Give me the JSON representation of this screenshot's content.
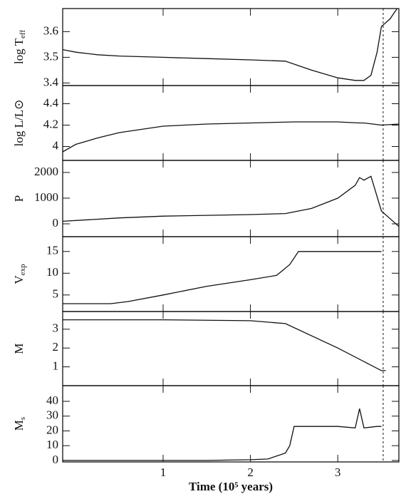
{
  "chart_data": [
    {
      "type": "line",
      "ylabel": "log T",
      "ylabel_sub": "eff",
      "xlim": [
        -0.15,
        3.7
      ],
      "ylim": [
        3.39,
        3.69
      ],
      "yticks": [
        3.4,
        3.5,
        3.6
      ],
      "dashed_line_x": 3.52,
      "x": [
        -0.15,
        0,
        0.25,
        0.5,
        1,
        1.5,
        2,
        2.4,
        2.7,
        3,
        3.2,
        3.3,
        3.38,
        3.45,
        3.5,
        3.6,
        3.68
      ],
      "values": [
        3.53,
        3.52,
        3.51,
        3.505,
        3.5,
        3.495,
        3.49,
        3.485,
        3.45,
        3.42,
        3.41,
        3.41,
        3.43,
        3.52,
        3.62,
        3.65,
        3.69
      ]
    },
    {
      "type": "line",
      "ylabel": "log L/L⊙",
      "xlim": [
        -0.15,
        3.7
      ],
      "ylim": [
        3.87,
        4.57
      ],
      "yticks": [
        4,
        4.2,
        4.4
      ],
      "dashed_line_x": 3.52,
      "x": [
        -0.15,
        0,
        0.25,
        0.5,
        1,
        1.5,
        2,
        2.5,
        3,
        3.25,
        3.3,
        3.5,
        3.7
      ],
      "values": [
        3.95,
        4.02,
        4.08,
        4.13,
        4.19,
        4.21,
        4.22,
        4.23,
        4.23,
        4.22,
        4.22,
        4.2,
        4.21
      ]
    },
    {
      "type": "line",
      "ylabel": "P",
      "xlim": [
        -0.15,
        3.7
      ],
      "ylim": [
        -500,
        2470
      ],
      "yticks": [
        0,
        1000,
        2000
      ],
      "dashed_line_x": 3.52,
      "x": [
        -0.15,
        0.5,
        1,
        1.5,
        2,
        2.4,
        2.7,
        3,
        3.2,
        3.25,
        3.3,
        3.38,
        3.5,
        3.6,
        3.7
      ],
      "values": [
        100,
        230,
        300,
        330,
        360,
        400,
        600,
        1000,
        1500,
        1800,
        1700,
        1850,
        500,
        200,
        -100
      ]
    },
    {
      "type": "line",
      "ylabel": "V",
      "ylabel_sub": "exp",
      "xlim": [
        -0.15,
        3.7
      ],
      "ylim": [
        1.2,
        18.4
      ],
      "yticks": [
        5,
        10,
        15
      ],
      "dashed_line_x": 3.52,
      "x": [
        -0.15,
        0.4,
        0.6,
        1,
        1.5,
        2,
        2.3,
        2.45,
        2.55,
        3,
        3.5
      ],
      "values": [
        3,
        3,
        3.5,
        5,
        7,
        8.5,
        9.5,
        12,
        15,
        15,
        15
      ]
    },
    {
      "type": "line",
      "ylabel": "M",
      "xlim": [
        -0.15,
        3.7
      ],
      "ylim": [
        0,
        3.94
      ],
      "yticks": [
        1,
        2,
        3
      ],
      "dashed_line_x": 3.52,
      "x": [
        -0.15,
        1,
        2,
        2.4,
        3,
        3.5,
        3.55
      ],
      "values": [
        3.5,
        3.5,
        3.45,
        3.3,
        2,
        0.8,
        0.8
      ]
    },
    {
      "type": "line",
      "ylabel": "M",
      "ylabel_sub": "s",
      "xlim": [
        -0.15,
        3.7
      ],
      "ylim": [
        -1,
        50.6
      ],
      "yticks": [
        0,
        10,
        20,
        30,
        40
      ],
      "dashed_line_x": 3.52,
      "xlabel": "Time (10⁵ years)",
      "xticks": [
        1,
        2,
        3
      ],
      "x": [
        -0.15,
        1.5,
        2,
        2.2,
        2.4,
        2.45,
        2.5,
        3,
        3.2,
        3.25,
        3.3,
        3.45,
        3.5
      ],
      "values": [
        0,
        0,
        0.5,
        1,
        5,
        10,
        23,
        23,
        22,
        35,
        22,
        23,
        23
      ]
    }
  ]
}
